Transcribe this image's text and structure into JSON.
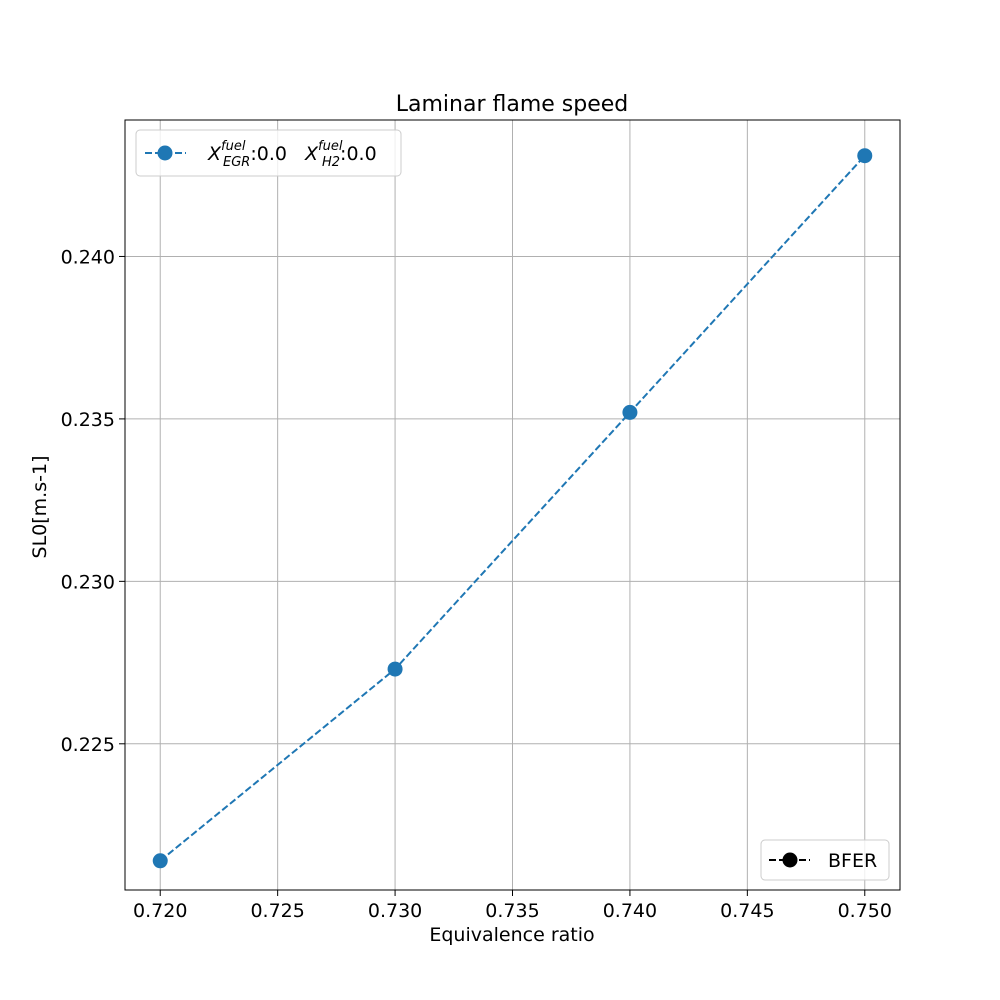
{
  "chart_data": {
    "type": "line",
    "title": "Laminar flame speed",
    "xlabel": "Equivalence ratio",
    "ylabel": "SL0[m.s-1]",
    "xlim": [
      0.7185,
      0.7515
    ],
    "ylim": [
      0.2205,
      0.2442
    ],
    "x_ticks": [
      "0.720",
      "0.725",
      "0.730",
      "0.735",
      "0.740",
      "0.745",
      "0.750"
    ],
    "y_ticks": [
      "0.225",
      "0.230",
      "0.235",
      "0.240"
    ],
    "grid": true,
    "series": [
      {
        "name_parts": {
          "egr_base": "X",
          "egr_sup": "fuel",
          "egr_sub": "EGR",
          "egr_value": ":0.0",
          "h2_base": "X",
          "h2_sup": "fuel",
          "h2_sub": "H2",
          "h2_value": ":0.0"
        },
        "x": [
          0.72,
          0.73,
          0.74,
          0.75
        ],
        "y": [
          0.2214,
          0.2273,
          0.2352,
          0.2431
        ],
        "color": "#1f77b4",
        "linestyle": "dashed",
        "marker": "circle"
      }
    ],
    "legends": [
      {
        "placement": "upper-left",
        "entry": "series-0"
      },
      {
        "placement": "lower-right",
        "label": "BFER",
        "color": "#000000",
        "linestyle": "dashed",
        "marker": "circle"
      }
    ]
  }
}
